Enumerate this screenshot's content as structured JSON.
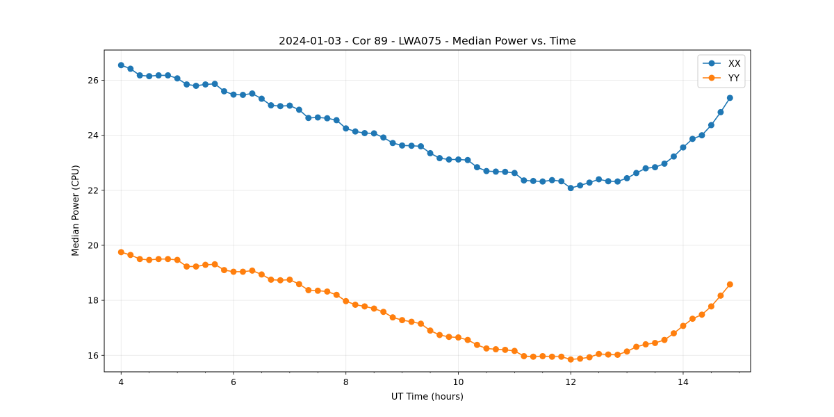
{
  "chart_data": {
    "type": "line",
    "title": "2024-01-03 - Cor 89 - LWA075 - Median Power vs. Time",
    "xlabel": "UT Time (hours)",
    "ylabel": "Median Power (CPU)",
    "xlim": [
      3.7,
      15.2
    ],
    "ylim": [
      15.4,
      27.1
    ],
    "xticks": [
      4,
      6,
      8,
      10,
      12,
      14
    ],
    "yticks": [
      16,
      18,
      20,
      22,
      24,
      26
    ],
    "grid": true,
    "legend_position": "top-right",
    "x": [
      4.0,
      4.167,
      4.333,
      4.5,
      4.667,
      4.833,
      5.0,
      5.167,
      5.333,
      5.5,
      5.667,
      5.833,
      6.0,
      6.167,
      6.333,
      6.5,
      6.667,
      6.833,
      7.0,
      7.167,
      7.333,
      7.5,
      7.667,
      7.833,
      8.0,
      8.167,
      8.333,
      8.5,
      8.667,
      8.833,
      9.0,
      9.167,
      9.333,
      9.5,
      9.667,
      9.833,
      10.0,
      10.167,
      10.333,
      10.5,
      10.667,
      10.833,
      11.0,
      11.167,
      11.333,
      11.5,
      11.667,
      11.833,
      12.0,
      12.167,
      12.333,
      12.5,
      12.667,
      12.833,
      13.0,
      13.167,
      13.333,
      13.5,
      13.667,
      13.833,
      14.0,
      14.167,
      14.333,
      14.5,
      14.667,
      14.833
    ],
    "series": [
      {
        "name": "XX",
        "color": "#1f77b4",
        "values": [
          26.55,
          26.42,
          26.18,
          26.15,
          26.18,
          26.18,
          26.07,
          25.85,
          25.8,
          25.85,
          25.87,
          25.6,
          25.48,
          25.47,
          25.52,
          25.33,
          25.09,
          25.06,
          25.08,
          24.93,
          24.63,
          24.65,
          24.62,
          24.55,
          24.25,
          24.14,
          24.08,
          24.07,
          23.92,
          23.72,
          23.63,
          23.62,
          23.6,
          23.35,
          23.17,
          23.12,
          23.12,
          23.1,
          22.84,
          22.7,
          22.68,
          22.67,
          22.63,
          22.36,
          22.34,
          22.32,
          22.37,
          22.33,
          22.08,
          22.18,
          22.28,
          22.4,
          22.33,
          22.32,
          22.44,
          22.63,
          22.8,
          22.84,
          22.97,
          23.23,
          23.56,
          23.87,
          24.0,
          24.37,
          24.84,
          25.36
        ]
      },
      {
        "name": "YY",
        "color": "#ff7f0e",
        "values": [
          19.75,
          19.65,
          19.5,
          19.47,
          19.5,
          19.5,
          19.47,
          19.23,
          19.23,
          19.29,
          19.31,
          19.1,
          19.04,
          19.04,
          19.08,
          18.94,
          18.75,
          18.73,
          18.75,
          18.59,
          18.37,
          18.35,
          18.32,
          18.2,
          17.97,
          17.84,
          17.78,
          17.7,
          17.58,
          17.38,
          17.28,
          17.22,
          17.15,
          16.9,
          16.74,
          16.67,
          16.65,
          16.56,
          16.38,
          16.25,
          16.22,
          16.2,
          16.16,
          15.97,
          15.95,
          15.97,
          15.95,
          15.95,
          15.85,
          15.88,
          15.93,
          16.05,
          16.03,
          16.02,
          16.14,
          16.31,
          16.4,
          16.45,
          16.56,
          16.8,
          17.07,
          17.33,
          17.48,
          17.78,
          18.17,
          18.58
        ]
      }
    ]
  }
}
